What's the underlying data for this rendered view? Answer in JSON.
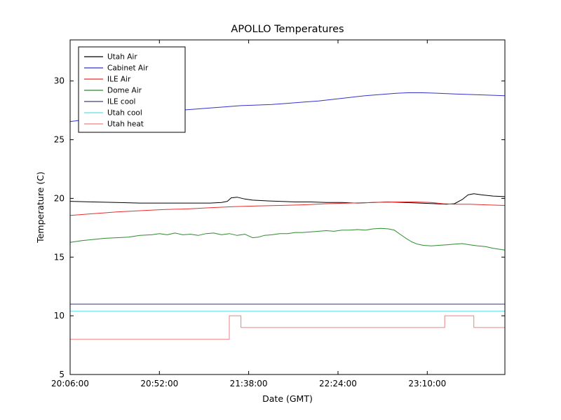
{
  "chart_data": {
    "type": "line",
    "title": "APOLLO Temperatures",
    "xlabel": "Date (GMT)",
    "ylabel": "Temperature (C)",
    "x_unit": "minutes after 20:06:00 GMT",
    "xlim": [
      0,
      224
    ],
    "ylim": [
      5,
      33.5
    ],
    "grid": false,
    "legend_position": "upper-left",
    "x_ticks": [
      {
        "value": 0,
        "label": "20:06:00"
      },
      {
        "value": 46,
        "label": "20:52:00"
      },
      {
        "value": 92,
        "label": "21:38:00"
      },
      {
        "value": 138,
        "label": "22:24:00"
      },
      {
        "value": 184,
        "label": "23:10:00"
      }
    ],
    "y_ticks": [
      {
        "value": 5,
        "label": "5"
      },
      {
        "value": 10,
        "label": "10"
      },
      {
        "value": 15,
        "label": "15"
      },
      {
        "value": 20,
        "label": "20"
      },
      {
        "value": 25,
        "label": "25"
      },
      {
        "value": 30,
        "label": "30"
      }
    ],
    "series": [
      {
        "name": "Utah Air",
        "color": "#000000",
        "points": [
          [
            0,
            19.75
          ],
          [
            12,
            19.7
          ],
          [
            24,
            19.65
          ],
          [
            36,
            19.6
          ],
          [
            48,
            19.6
          ],
          [
            60,
            19.6
          ],
          [
            72,
            19.6
          ],
          [
            78,
            19.65
          ],
          [
            81,
            19.75
          ],
          [
            83,
            20.05
          ],
          [
            86,
            20.1
          ],
          [
            90,
            19.95
          ],
          [
            94,
            19.85
          ],
          [
            100,
            19.8
          ],
          [
            108,
            19.75
          ],
          [
            116,
            19.7
          ],
          [
            124,
            19.7
          ],
          [
            132,
            19.65
          ],
          [
            140,
            19.65
          ],
          [
            148,
            19.6
          ],
          [
            156,
            19.65
          ],
          [
            164,
            19.7
          ],
          [
            172,
            19.65
          ],
          [
            180,
            19.6
          ],
          [
            188,
            19.55
          ],
          [
            194,
            19.5
          ],
          [
            198,
            19.55
          ],
          [
            202,
            19.9
          ],
          [
            205,
            20.3
          ],
          [
            208,
            20.4
          ],
          [
            212,
            20.3
          ],
          [
            218,
            20.2
          ],
          [
            224,
            20.15
          ]
        ]
      },
      {
        "name": "Cabinet Air",
        "color": "#3333cc",
        "points": [
          [
            0,
            26.55
          ],
          [
            8,
            26.7
          ],
          [
            16,
            26.8
          ],
          [
            24,
            26.95
          ],
          [
            32,
            27.1
          ],
          [
            40,
            27.2
          ],
          [
            48,
            27.35
          ],
          [
            56,
            27.5
          ],
          [
            64,
            27.6
          ],
          [
            72,
            27.7
          ],
          [
            80,
            27.8
          ],
          [
            88,
            27.9
          ],
          [
            96,
            27.95
          ],
          [
            104,
            28.0
          ],
          [
            112,
            28.1
          ],
          [
            120,
            28.2
          ],
          [
            128,
            28.3
          ],
          [
            136,
            28.45
          ],
          [
            144,
            28.6
          ],
          [
            152,
            28.75
          ],
          [
            160,
            28.85
          ],
          [
            168,
            28.95
          ],
          [
            174,
            29.0
          ],
          [
            182,
            29.0
          ],
          [
            190,
            28.95
          ],
          [
            198,
            28.9
          ],
          [
            206,
            28.85
          ],
          [
            214,
            28.8
          ],
          [
            224,
            28.75
          ]
        ]
      },
      {
        "name": "ILE Air",
        "color": "#e62e2e",
        "points": [
          [
            0,
            18.55
          ],
          [
            12,
            18.7
          ],
          [
            24,
            18.85
          ],
          [
            36,
            18.95
          ],
          [
            48,
            19.05
          ],
          [
            60,
            19.1
          ],
          [
            72,
            19.2
          ],
          [
            84,
            19.3
          ],
          [
            96,
            19.35
          ],
          [
            108,
            19.4
          ],
          [
            120,
            19.45
          ],
          [
            132,
            19.55
          ],
          [
            144,
            19.6
          ],
          [
            156,
            19.65
          ],
          [
            168,
            19.7
          ],
          [
            178,
            19.7
          ],
          [
            186,
            19.65
          ],
          [
            192,
            19.55
          ],
          [
            198,
            19.5
          ],
          [
            206,
            19.5
          ],
          [
            214,
            19.45
          ],
          [
            224,
            19.4
          ]
        ]
      },
      {
        "name": "Dome Air",
        "color": "#2e8b2e",
        "points": [
          [
            0,
            16.25
          ],
          [
            6,
            16.4
          ],
          [
            12,
            16.5
          ],
          [
            18,
            16.6
          ],
          [
            24,
            16.65
          ],
          [
            30,
            16.7
          ],
          [
            36,
            16.85
          ],
          [
            42,
            16.9
          ],
          [
            46,
            17.0
          ],
          [
            50,
            16.9
          ],
          [
            54,
            17.05
          ],
          [
            58,
            16.9
          ],
          [
            62,
            16.95
          ],
          [
            66,
            16.85
          ],
          [
            70,
            17.0
          ],
          [
            74,
            17.05
          ],
          [
            78,
            16.9
          ],
          [
            82,
            17.0
          ],
          [
            86,
            16.85
          ],
          [
            90,
            16.95
          ],
          [
            94,
            16.65
          ],
          [
            97,
            16.7
          ],
          [
            100,
            16.85
          ],
          [
            104,
            16.9
          ],
          [
            108,
            17.0
          ],
          [
            112,
            17.0
          ],
          [
            116,
            17.1
          ],
          [
            120,
            17.1
          ],
          [
            124,
            17.15
          ],
          [
            128,
            17.2
          ],
          [
            132,
            17.25
          ],
          [
            136,
            17.2
          ],
          [
            140,
            17.3
          ],
          [
            144,
            17.3
          ],
          [
            148,
            17.35
          ],
          [
            152,
            17.3
          ],
          [
            156,
            17.4
          ],
          [
            160,
            17.45
          ],
          [
            164,
            17.4
          ],
          [
            167,
            17.3
          ],
          [
            170,
            16.95
          ],
          [
            173,
            16.6
          ],
          [
            176,
            16.3
          ],
          [
            179,
            16.1
          ],
          [
            182,
            16.0
          ],
          [
            186,
            15.95
          ],
          [
            190,
            16.0
          ],
          [
            194,
            16.05
          ],
          [
            198,
            16.1
          ],
          [
            202,
            16.15
          ],
          [
            206,
            16.05
          ],
          [
            210,
            15.95
          ],
          [
            214,
            15.9
          ],
          [
            218,
            15.75
          ],
          [
            224,
            15.6
          ]
        ]
      },
      {
        "name": "ILE cool",
        "color": "#404068",
        "points": [
          [
            0,
            11.0
          ],
          [
            224,
            11.0
          ]
        ]
      },
      {
        "name": "Utah cool",
        "color": "#66e0e8",
        "points": [
          [
            0,
            10.4
          ],
          [
            224,
            10.4
          ]
        ]
      },
      {
        "name": "Utah heat",
        "color": "#f08080",
        "points": [
          [
            0,
            8.0
          ],
          [
            82,
            8.0
          ],
          [
            82,
            10.0
          ],
          [
            88,
            10.0
          ],
          [
            88,
            9.0
          ],
          [
            193,
            9.0
          ],
          [
            193,
            10.0
          ],
          [
            208,
            10.0
          ],
          [
            208,
            9.0
          ],
          [
            224,
            9.0
          ]
        ]
      }
    ]
  }
}
